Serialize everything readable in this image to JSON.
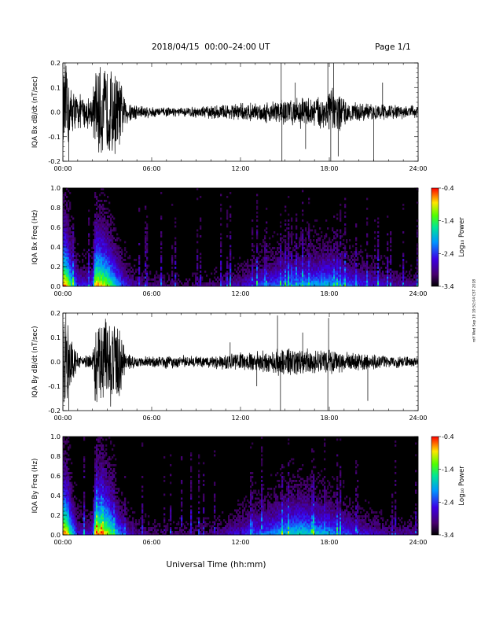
{
  "header": {
    "title": "2018/04/15  00:00–24:00 UT",
    "page": "Page 1/1"
  },
  "footer": {
    "xlabel": "Universal Time (hh:mm)",
    "stamp": "rolf Wed Sep 19 19:52:04 CST 2018"
  },
  "colors": {
    "axis": "#000000",
    "trace": "#000000",
    "spectrogram_bg": "#000000"
  },
  "chart_data": [
    {
      "type": "line",
      "ylabel": "IQA Bx dB/dt (nT/sec)",
      "xlim": [
        0,
        24
      ],
      "ylim": [
        -0.2,
        0.2
      ],
      "x_ticks": [
        "00:00",
        "06:00",
        "12:00",
        "18:00",
        "24:00"
      ],
      "y_ticks": [
        "-0.2",
        "-0.1",
        "0.0",
        "0.1",
        "0.2"
      ],
      "envelope": {
        "hours": [
          0,
          0.3,
          0.5,
          1,
          1.5,
          2,
          2.2,
          2.6,
          3,
          3.5,
          3.9,
          4.2,
          5,
          6,
          7,
          8,
          9,
          10,
          11,
          12,
          12.5,
          13,
          13.5,
          14,
          14.5,
          15,
          15.5,
          16,
          16.5,
          17,
          17.5,
          18,
          18.5,
          19,
          19.5,
          20,
          21,
          22,
          23,
          24
        ],
        "amplitude": [
          0.2,
          0.2,
          0.12,
          0.08,
          0.07,
          0.08,
          0.2,
          0.2,
          0.2,
          0.2,
          0.14,
          0.06,
          0.035,
          0.025,
          0.02,
          0.02,
          0.025,
          0.03,
          0.035,
          0.04,
          0.04,
          0.04,
          0.045,
          0.05,
          0.06,
          0.06,
          0.06,
          0.07,
          0.065,
          0.07,
          0.08,
          0.11,
          0.1,
          0.06,
          0.045,
          0.04,
          0.035,
          0.035,
          0.03,
          0.03
        ]
      },
      "spikes": [
        {
          "hour": 0.4,
          "value": -0.2
        },
        {
          "hour": 0.15,
          "value": 0.2
        },
        {
          "hour": 14.75,
          "value": 0.2
        },
        {
          "hour": 14.8,
          "value": -0.2
        },
        {
          "hour": 17.9,
          "value": 0.2
        },
        {
          "hour": 18.1,
          "value": -0.2
        },
        {
          "hour": 18.3,
          "value": 0.2
        },
        {
          "hour": 18.6,
          "value": -0.18
        },
        {
          "hour": 21.0,
          "value": -0.2
        },
        {
          "hour": 21.6,
          "value": 0.12
        },
        {
          "hour": 15.7,
          "value": 0.12
        },
        {
          "hour": 16.4,
          "value": -0.15
        }
      ]
    },
    {
      "type": "heatmap",
      "ylabel": "IQA Bx Freq (Hz)",
      "xlim": [
        0,
        24
      ],
      "ylim": [
        0,
        1.0
      ],
      "x_ticks": [
        "00:00",
        "06:00",
        "12:00",
        "18:00",
        "24:00"
      ],
      "y_ticks": [
        "0.0",
        "0.2",
        "0.4",
        "0.6",
        "0.8",
        "1.0"
      ],
      "colorbar": {
        "label": "Log₁₀ Power",
        "ticks": [
          "-0.4",
          "-1.4",
          "-2.4",
          "-3.4"
        ],
        "range": [
          -3.4,
          -0.4
        ]
      },
      "activity": {
        "hours": [
          0,
          0.3,
          0.6,
          1,
          1.5,
          2,
          2.2,
          2.6,
          3,
          3.5,
          4,
          4.5,
          5,
          6,
          8,
          10,
          12,
          13,
          14,
          15,
          16,
          17,
          18,
          19,
          20,
          21,
          22,
          23,
          24
        ],
        "intensity": [
          1.0,
          0.9,
          0.6,
          0.35,
          0.3,
          0.35,
          0.95,
          0.9,
          0.8,
          0.6,
          0.4,
          0.25,
          0.2,
          0.15,
          0.12,
          0.15,
          0.25,
          0.35,
          0.4,
          0.45,
          0.5,
          0.5,
          0.55,
          0.45,
          0.35,
          0.3,
          0.25,
          0.2,
          0.2
        ]
      }
    },
    {
      "type": "line",
      "ylabel": "IQA By dB/dt (nT/sec)",
      "xlim": [
        0,
        24
      ],
      "ylim": [
        -0.2,
        0.2
      ],
      "x_ticks": [
        "00:00",
        "06:00",
        "12:00",
        "18:00",
        "24:00"
      ],
      "y_ticks": [
        "-0.2",
        "-0.1",
        "0.0",
        "0.1",
        "0.2"
      ],
      "envelope": {
        "hours": [
          0,
          0.3,
          0.6,
          1,
          1.5,
          2,
          2.2,
          2.6,
          3,
          3.5,
          3.9,
          4.2,
          5,
          6,
          7,
          8,
          9,
          10,
          11,
          12,
          12.5,
          13,
          13.5,
          14,
          14.5,
          15,
          15.5,
          16,
          16.5,
          17,
          17.5,
          18,
          18.5,
          19,
          19.5,
          20,
          21,
          22,
          23,
          24
        ],
        "amplitude": [
          0.2,
          0.2,
          0.1,
          0.04,
          0.03,
          0.04,
          0.2,
          0.2,
          0.2,
          0.2,
          0.2,
          0.04,
          0.025,
          0.025,
          0.03,
          0.03,
          0.025,
          0.03,
          0.035,
          0.04,
          0.04,
          0.045,
          0.05,
          0.05,
          0.06,
          0.06,
          0.065,
          0.06,
          0.065,
          0.055,
          0.06,
          0.06,
          0.05,
          0.045,
          0.04,
          0.04,
          0.035,
          0.03,
          0.025,
          0.02
        ]
      },
      "spikes": [
        {
          "hour": 0.4,
          "value": -0.2
        },
        {
          "hour": 0.2,
          "value": 0.2
        },
        {
          "hour": 14.7,
          "value": -0.2
        },
        {
          "hour": 14.5,
          "value": 0.19
        },
        {
          "hour": 17.9,
          "value": -0.2
        },
        {
          "hour": 17.95,
          "value": 0.18
        },
        {
          "hour": 20.6,
          "value": -0.16
        },
        {
          "hour": 13.1,
          "value": -0.1
        },
        {
          "hour": 11.3,
          "value": 0.08
        },
        {
          "hour": 16.2,
          "value": 0.12
        }
      ]
    },
    {
      "type": "heatmap",
      "ylabel": "IQA By Freq (Hz)",
      "xlim": [
        0,
        24
      ],
      "ylim": [
        0,
        1.0
      ],
      "x_ticks": [
        "00:00",
        "06:00",
        "12:00",
        "18:00",
        "24:00"
      ],
      "y_ticks": [
        "0.0",
        "0.2",
        "0.4",
        "0.6",
        "0.8",
        "1.0"
      ],
      "colorbar": {
        "label": "Log₁₀ Power",
        "ticks": [
          "-0.4",
          "-1.4",
          "-2.4",
          "-3.4"
        ],
        "range": [
          -3.4,
          -0.4
        ]
      },
      "activity": {
        "hours": [
          0,
          0.3,
          0.6,
          1,
          1.5,
          2,
          2.2,
          2.6,
          3,
          3.5,
          4,
          4.5,
          5,
          6,
          8,
          10,
          12,
          13,
          14,
          15,
          16,
          17,
          18,
          19,
          20,
          21,
          22,
          23,
          24
        ],
        "intensity": [
          1.0,
          0.9,
          0.6,
          0.3,
          0.25,
          0.3,
          0.95,
          0.9,
          0.85,
          0.6,
          0.4,
          0.25,
          0.2,
          0.15,
          0.12,
          0.15,
          0.3,
          0.4,
          0.45,
          0.55,
          0.6,
          0.55,
          0.5,
          0.4,
          0.3,
          0.25,
          0.2,
          0.2,
          0.2
        ]
      }
    }
  ]
}
